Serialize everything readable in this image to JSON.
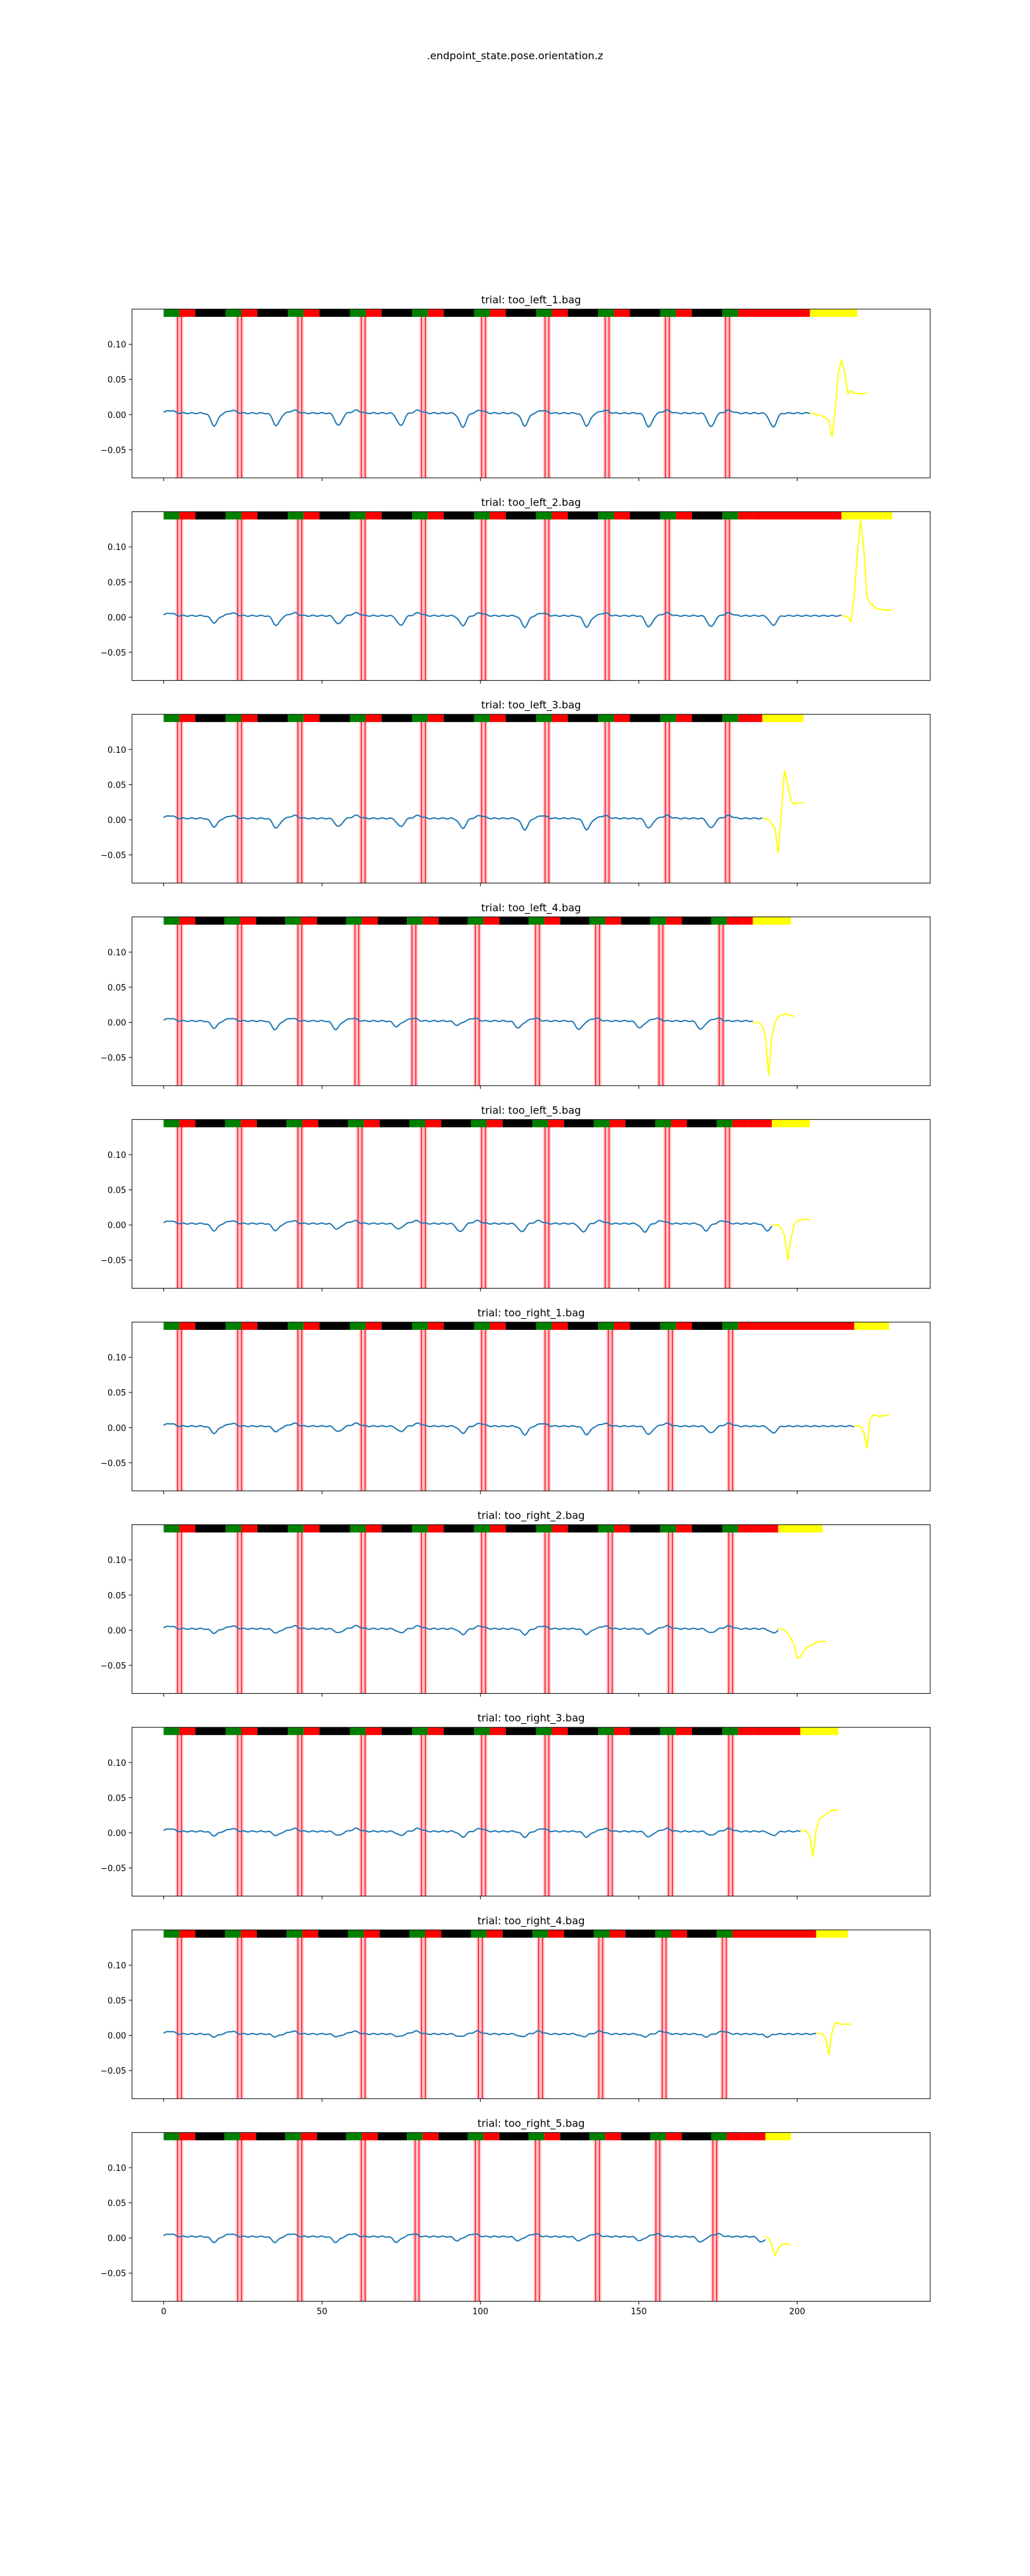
{
  "figure": {
    "suptitle": ".endpoint_state.pose.orientation.z",
    "x_ticks": [
      0,
      50,
      100,
      150,
      200
    ],
    "y_ticks": [
      0.1,
      0.05,
      0.0,
      -0.05
    ],
    "y_tick_labels": [
      "0.10",
      "0.05",
      "0.00",
      "−0.05"
    ],
    "x_tick_labels": [
      "0",
      "50",
      "100",
      "150",
      "200"
    ],
    "colors": {
      "signal": "#1f77b4",
      "tail": "#ffff00",
      "band_green": "#008000",
      "band_red": "#ff0000",
      "band_black": "#000000",
      "band_yellow": "#ffff00",
      "marker_line": "#ff0000",
      "marker_fill": "#ffc0cb"
    }
  },
  "chart_data": [
    {
      "type": "line",
      "title": "trial: too_left_1.bag",
      "xlim": [
        -10,
        242
      ],
      "ylim": [
        -0.09,
        0.15
      ],
      "signal_end": 204,
      "tail_end": 222,
      "markers": [
        5,
        24,
        43,
        63,
        82,
        101,
        121,
        140,
        159,
        178
      ],
      "cycle_starts": [
        0,
        19.6,
        39.2,
        58.8,
        78.4,
        98,
        117.6,
        137.2,
        156.8,
        176.4
      ],
      "band_red_end": 204,
      "band_yellow_end": 219,
      "dips": [
        -0.018,
        -0.018,
        -0.018,
        -0.018,
        -0.02,
        -0.018,
        -0.018,
        -0.02,
        -0.02,
        -0.02
      ],
      "tail_points": [
        [
          204,
          0.003
        ],
        [
          206,
          0.0
        ],
        [
          208,
          -0.002
        ],
        [
          210,
          -0.008
        ],
        [
          211,
          -0.032
        ],
        [
          212,
          0.005
        ],
        [
          213,
          0.06
        ],
        [
          214,
          0.077
        ],
        [
          215,
          0.06
        ],
        [
          216,
          0.03
        ],
        [
          217,
          0.034
        ],
        [
          218,
          0.03
        ],
        [
          220,
          0.03
        ],
        [
          222,
          0.03
        ]
      ]
    },
    {
      "type": "line",
      "title": "trial: too_left_2.bag",
      "xlim": [
        -10,
        242
      ],
      "ylim": [
        -0.09,
        0.15
      ],
      "signal_end": 214,
      "tail_end": 230,
      "markers": [
        5,
        24,
        43,
        63,
        82,
        101,
        121,
        140,
        159,
        178
      ],
      "cycle_starts": [
        0,
        19.6,
        39.2,
        58.8,
        78.4,
        98,
        117.6,
        137.2,
        156.8,
        176.4
      ],
      "band_red_end": 214,
      "band_yellow_end": 230,
      "dips": [
        -0.01,
        -0.014,
        -0.012,
        -0.014,
        -0.014,
        -0.016,
        -0.016,
        -0.016,
        -0.016,
        -0.014
      ],
      "tail_points": [
        [
          214,
          0.003
        ],
        [
          216,
          0.0
        ],
        [
          217,
          -0.006
        ],
        [
          218,
          0.03
        ],
        [
          219,
          0.09
        ],
        [
          220,
          0.138
        ],
        [
          221,
          0.1
        ],
        [
          222,
          0.03
        ],
        [
          223,
          0.02
        ],
        [
          225,
          0.012
        ],
        [
          228,
          0.01
        ],
        [
          230,
          0.01
        ]
      ]
    },
    {
      "type": "line",
      "title": "trial: too_left_3.bag",
      "xlim": [
        -10,
        242
      ],
      "ylim": [
        -0.09,
        0.15
      ],
      "signal_end": 189,
      "tail_end": 202,
      "markers": [
        5,
        24,
        43,
        63,
        82,
        101,
        121,
        140,
        159,
        178
      ],
      "cycle_starts": [
        0,
        19.6,
        39.2,
        58.8,
        78.4,
        98,
        117.6,
        137.2,
        156.8,
        176.4
      ],
      "band_red_end": 189,
      "band_yellow_end": 202,
      "dips": [
        -0.012,
        -0.014,
        -0.012,
        -0.012,
        -0.014,
        -0.016,
        -0.016,
        -0.014,
        -0.014,
        -0.016
      ],
      "tail_points": [
        [
          189,
          0.003
        ],
        [
          191,
          0.0
        ],
        [
          192,
          -0.006
        ],
        [
          193,
          -0.012
        ],
        [
          194,
          -0.048
        ],
        [
          195,
          0.01
        ],
        [
          196,
          0.07
        ],
        [
          197,
          0.05
        ],
        [
          198,
          0.028
        ],
        [
          199,
          0.022
        ],
        [
          200,
          0.024
        ],
        [
          202,
          0.024
        ]
      ]
    },
    {
      "type": "line",
      "title": "trial: too_left_4.bag",
      "xlim": [
        -10,
        242
      ],
      "ylim": [
        -0.09,
        0.15
      ],
      "signal_end": 186,
      "tail_end": 199,
      "markers": [
        5,
        24,
        43,
        61,
        79,
        99,
        118,
        137,
        157,
        176
      ],
      "cycle_starts": [
        0,
        19.2,
        38.4,
        57.6,
        76.8,
        96,
        115.2,
        134.4,
        153.6,
        172.8
      ],
      "band_red_end": 186,
      "band_yellow_end": 198,
      "dips": [
        -0.01,
        -0.012,
        -0.012,
        -0.008,
        -0.006,
        -0.01,
        -0.012,
        -0.01,
        -0.012,
        -0.012
      ],
      "tail_points": [
        [
          186,
          0.0
        ],
        [
          188,
          0.0
        ],
        [
          189,
          -0.005
        ],
        [
          190,
          -0.02
        ],
        [
          191,
          -0.076
        ],
        [
          192,
          -0.02
        ],
        [
          193,
          0.0
        ],
        [
          194,
          0.008
        ],
        [
          196,
          0.012
        ],
        [
          198,
          0.01
        ],
        [
          199,
          0.008
        ]
      ]
    },
    {
      "type": "line",
      "title": "trial: too_left_5.bag",
      "xlim": [
        -10,
        242
      ],
      "ylim": [
        -0.09,
        0.15
      ],
      "signal_end": 192,
      "tail_end": 204,
      "markers": [
        5,
        24,
        43,
        62,
        82,
        101,
        121,
        140,
        159,
        178
      ],
      "cycle_starts": [
        0,
        19.4,
        38.8,
        58.2,
        77.6,
        97,
        116.4,
        135.8,
        155.2,
        174.6
      ],
      "band_red_end": 192,
      "band_yellow_end": 204,
      "dips": [
        -0.01,
        -0.01,
        -0.008,
        -0.008,
        -0.012,
        -0.012,
        -0.012,
        -0.012,
        -0.01,
        -0.01
      ],
      "tail_points": [
        [
          192,
          0.0
        ],
        [
          194,
          0.0
        ],
        [
          195,
          -0.005
        ],
        [
          196,
          -0.015
        ],
        [
          197,
          -0.05
        ],
        [
          198,
          -0.02
        ],
        [
          199,
          0.0
        ],
        [
          200,
          0.006
        ],
        [
          202,
          0.008
        ],
        [
          204,
          0.008
        ]
      ]
    },
    {
      "type": "line",
      "title": "trial: too_right_1.bag",
      "xlim": [
        -10,
        242
      ],
      "ylim": [
        -0.09,
        0.15
      ],
      "signal_end": 218,
      "tail_end": 229,
      "markers": [
        5,
        24,
        43,
        63,
        82,
        101,
        121,
        141,
        160,
        179
      ],
      "cycle_starts": [
        0,
        19.6,
        39.2,
        58.8,
        78.4,
        98,
        117.6,
        137.2,
        156.8,
        176.4
      ],
      "band_red_end": 218,
      "band_yellow_end": 229,
      "dips": [
        -0.01,
        -0.008,
        -0.008,
        -0.008,
        -0.01,
        -0.012,
        -0.012,
        -0.012,
        -0.01,
        -0.01
      ],
      "tail_points": [
        [
          218,
          0.003
        ],
        [
          220,
          0.002
        ],
        [
          221,
          -0.006
        ],
        [
          222,
          -0.03
        ],
        [
          223,
          0.012
        ],
        [
          224,
          0.018
        ],
        [
          226,
          0.016
        ],
        [
          229,
          0.018
        ]
      ]
    },
    {
      "type": "line",
      "title": "trial: too_right_2.bag",
      "xlim": [
        -10,
        242
      ],
      "ylim": [
        -0.09,
        0.15
      ],
      "signal_end": 194,
      "tail_end": 209,
      "markers": [
        5,
        24,
        43,
        63,
        82,
        101,
        121,
        141,
        160,
        179
      ],
      "cycle_starts": [
        0,
        19.6,
        39.2,
        58.8,
        78.4,
        98,
        117.6,
        137.2,
        156.8,
        176.4
      ],
      "band_red_end": 194,
      "band_yellow_end": 208,
      "dips": [
        -0.006,
        -0.006,
        -0.006,
        -0.006,
        -0.008,
        -0.008,
        -0.008,
        -0.008,
        -0.006,
        -0.006
      ],
      "tail_points": [
        [
          194,
          0.003
        ],
        [
          196,
          0.0
        ],
        [
          197,
          -0.004
        ],
        [
          198,
          -0.012
        ],
        [
          199,
          -0.02
        ],
        [
          200,
          -0.04
        ],
        [
          201,
          -0.038
        ],
        [
          202,
          -0.03
        ],
        [
          203,
          -0.025
        ],
        [
          205,
          -0.02
        ],
        [
          207,
          -0.016
        ],
        [
          209,
          -0.016
        ]
      ]
    },
    {
      "type": "line",
      "title": "trial: too_right_3.bag",
      "xlim": [
        -10,
        242
      ],
      "ylim": [
        -0.09,
        0.15
      ],
      "signal_end": 201,
      "tail_end": 213,
      "markers": [
        5,
        24,
        43,
        63,
        82,
        101,
        121,
        141,
        160,
        179
      ],
      "cycle_starts": [
        0,
        19.6,
        39.2,
        58.8,
        78.4,
        98,
        117.6,
        137.2,
        156.8,
        176.4
      ],
      "band_red_end": 201,
      "band_yellow_end": 213,
      "dips": [
        -0.006,
        -0.006,
        -0.006,
        -0.006,
        -0.008,
        -0.008,
        -0.008,
        -0.008,
        -0.006,
        -0.006
      ],
      "tail_points": [
        [
          201,
          0.004
        ],
        [
          203,
          0.002
        ],
        [
          204,
          -0.005
        ],
        [
          205,
          -0.034
        ],
        [
          206,
          0.005
        ],
        [
          207,
          0.02
        ],
        [
          209,
          0.026
        ],
        [
          211,
          0.032
        ],
        [
          213,
          0.032
        ]
      ]
    },
    {
      "type": "line",
      "title": "trial: too_right_4.bag",
      "xlim": [
        -10,
        242
      ],
      "ylim": [
        -0.09,
        0.15
      ],
      "signal_end": 206,
      "tail_end": 217,
      "markers": [
        5,
        24,
        43,
        63,
        82,
        100,
        119,
        138,
        158,
        177
      ],
      "cycle_starts": [
        0,
        19.4,
        38.8,
        58.2,
        77.6,
        97,
        116.4,
        135.8,
        155.2,
        174.6
      ],
      "band_red_end": 206,
      "band_yellow_end": 216,
      "dips": [
        -0.004,
        -0.004,
        -0.004,
        -0.004,
        -0.004,
        -0.004,
        -0.004,
        -0.004,
        -0.004,
        -0.004
      ],
      "tail_points": [
        [
          206,
          0.003
        ],
        [
          208,
          0.002
        ],
        [
          209,
          -0.005
        ],
        [
          210,
          -0.028
        ],
        [
          211,
          0.005
        ],
        [
          212,
          0.018
        ],
        [
          214,
          0.016
        ],
        [
          217,
          0.016
        ]
      ]
    },
    {
      "type": "line",
      "title": "trial: too_right_5.bag",
      "xlim": [
        -10,
        242
      ],
      "ylim": [
        -0.09,
        0.15
      ],
      "signal_end": 190,
      "tail_end": 198,
      "markers": [
        5,
        24,
        43,
        63,
        80,
        99,
        118,
        137,
        156,
        174
      ],
      "cycle_starts": [
        0,
        19.2,
        38.4,
        57.6,
        76.8,
        96,
        115.2,
        134.4,
        153.6,
        172.8
      ],
      "band_red_end": 190,
      "band_yellow_end": 198,
      "dips": [
        -0.008,
        -0.008,
        -0.008,
        -0.008,
        -0.006,
        -0.006,
        -0.006,
        -0.006,
        -0.008,
        -0.008
      ],
      "tail_points": [
        [
          190,
          0.002
        ],
        [
          191,
          0.0
        ],
        [
          192,
          -0.01
        ],
        [
          193,
          -0.025
        ],
        [
          194,
          -0.015
        ],
        [
          195,
          -0.01
        ],
        [
          196,
          -0.008
        ],
        [
          198,
          -0.01
        ]
      ]
    }
  ]
}
